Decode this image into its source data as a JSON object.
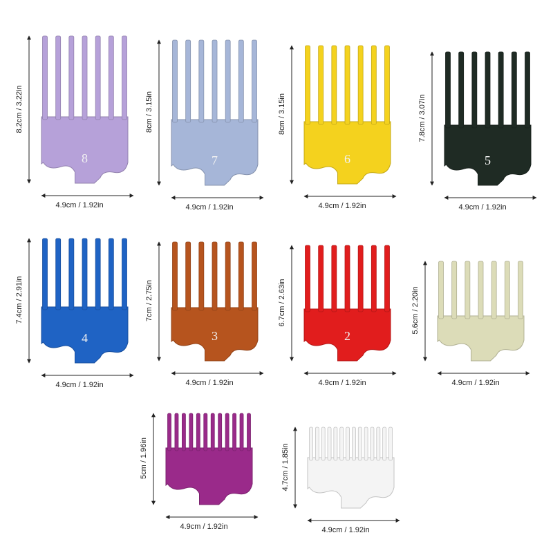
{
  "guides": [
    {
      "number": "8",
      "color": "#b6a1d9",
      "height_label": "8.2cm / 3.22in",
      "width_label": "4.9cm / 1.92in"
    },
    {
      "number": "7",
      "color": "#a6b6d8",
      "height_label": "8cm / 3.15in",
      "width_label": "4.9cm / 1.92in"
    },
    {
      "number": "6",
      "color": "#f4d21e",
      "height_label": "8cm / 3.15in",
      "width_label": "4.9cm / 1.92in"
    },
    {
      "number": "5",
      "color": "#1f2b24",
      "height_label": "7.8cm / 3.07in",
      "width_label": "4.9cm / 1.92in"
    },
    {
      "number": "4",
      "color": "#1f63c4",
      "height_label": "7.4cm / 2.91in",
      "width_label": "4.9cm / 1.92in"
    },
    {
      "number": "3",
      "color": "#b6541e",
      "height_label": "7cm / 2.75in",
      "width_label": "4.9cm / 1.92in"
    },
    {
      "number": "2",
      "color": "#e11d1d",
      "height_label": "6.7cm / 2.63in",
      "width_label": "4.9cm / 1.92in"
    },
    {
      "number": "",
      "color": "#dcdcb8",
      "height_label": "5.6cm / 2.20in",
      "width_label": "4.9cm / 1.92in"
    },
    {
      "number": "",
      "color": "#9a2a8a",
      "height_label": "5cm / 1.96in",
      "width_label": "4.9cm / 1.92in"
    },
    {
      "number": "",
      "color": "#f4f4f4",
      "height_label": "4.7cm / 1.85in",
      "width_label": "4.9cm / 1.92in"
    }
  ]
}
